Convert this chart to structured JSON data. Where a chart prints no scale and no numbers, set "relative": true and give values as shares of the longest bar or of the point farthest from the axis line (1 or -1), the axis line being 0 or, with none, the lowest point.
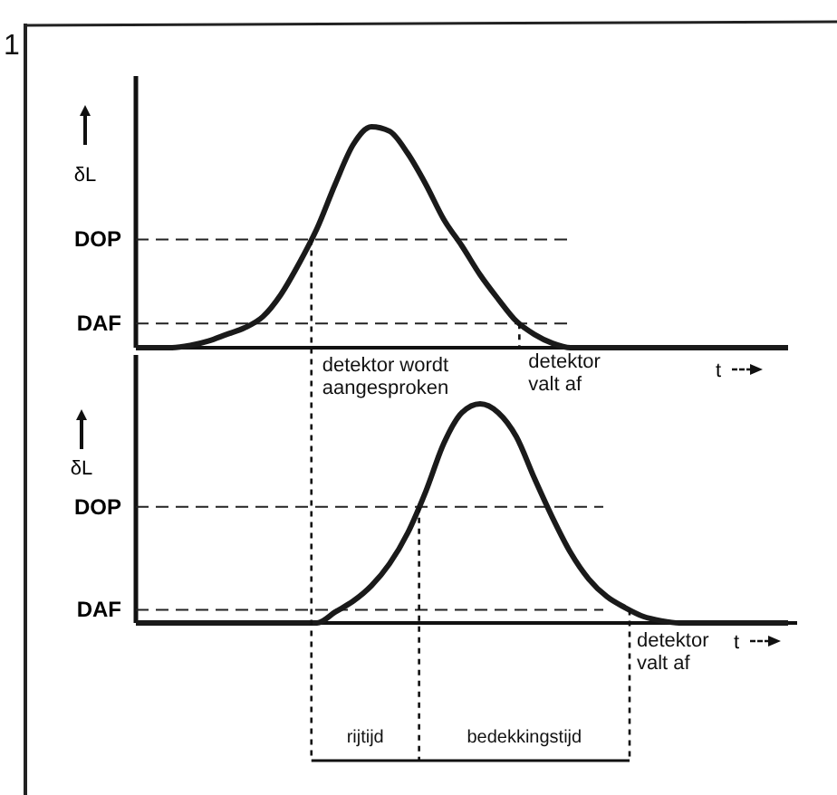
{
  "chart_data": [
    {
      "type": "line",
      "relative": true,
      "line_style": "solid",
      "xlabel": "t",
      "ylabel": "δL",
      "categories": [
        null,
        null,
        null,
        null,
        null,
        null,
        null,
        null,
        null,
        null,
        null,
        null,
        null,
        null,
        null,
        null,
        null,
        null,
        null,
        null,
        null,
        null,
        null,
        null,
        null,
        null,
        null,
        null,
        null,
        null,
        null,
        null,
        null,
        null,
        null,
        null,
        null
      ],
      "series": [
        {
          "color": "#1a1a1a",
          "values": [
            0,
            0,
            0,
            0.01,
            0.03,
            0.06,
            0.09,
            0.14,
            0.24,
            0.38,
            0.54,
            0.74,
            0.92,
            1,
            0.98,
            0.88,
            0.74,
            0.58,
            0.46,
            0.33,
            0.22,
            0.12,
            0.06,
            0.02,
            0,
            0,
            0,
            0,
            0,
            0,
            0,
            0,
            0,
            0,
            0,
            0,
            0
          ]
        }
      ],
      "ref_lines": [
        {
          "axis": "y",
          "value": 0.49,
          "label": "DOP",
          "line_style": "dashed"
        },
        {
          "axis": "y",
          "value": 0.11,
          "label": "DAF",
          "line_style": "dashed"
        }
      ],
      "annotations": [
        "1",
        "detektor wordt\naangesproken",
        "detektor\nvalt af"
      ]
    },
    {
      "type": "line",
      "relative": true,
      "line_style": "solid",
      "xlabel": "t",
      "ylabel": "δL",
      "categories": [
        null,
        null,
        null,
        null,
        null,
        null,
        null,
        null,
        null,
        null,
        null,
        null,
        null,
        null,
        null,
        null,
        null,
        null,
        null,
        null,
        null,
        null,
        null,
        null,
        null,
        null,
        null,
        null,
        null,
        null,
        null,
        null,
        null,
        null,
        null,
        null,
        null
      ],
      "series": [
        {
          "color": "#1a1a1a",
          "values": [
            0,
            0,
            0,
            0,
            0,
            0,
            0,
            0,
            0,
            0,
            0,
            0.05,
            0.1,
            0.17,
            0.27,
            0.41,
            0.6,
            0.82,
            0.96,
            1,
            0.96,
            0.85,
            0.66,
            0.48,
            0.32,
            0.2,
            0.12,
            0.07,
            0.03,
            0.01,
            0,
            0,
            0,
            0,
            0,
            0,
            0
          ]
        }
      ],
      "ref_lines": [
        {
          "axis": "y",
          "value": 0.53,
          "label": "DOP",
          "line_style": "dashed"
        },
        {
          "axis": "y",
          "value": 0.06,
          "label": "DAF",
          "line_style": "dashed"
        }
      ],
      "annotations": [
        "detektor\nvalt af",
        "rijtijd",
        "bedekkingstijd"
      ]
    }
  ]
}
